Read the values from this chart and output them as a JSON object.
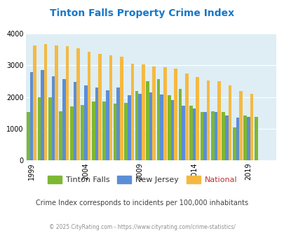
{
  "title": "Tinton Falls Property Crime Index",
  "title_color": "#1878c8",
  "subtitle": "Crime Index corresponds to incidents per 100,000 inhabitants",
  "footer": "© 2025 CityRating.com - https://www.cityrating.com/crime-statistics/",
  "years": [
    1999,
    2000,
    2001,
    2002,
    2003,
    2004,
    2005,
    2006,
    2007,
    2008,
    2009,
    2010,
    2011,
    2012,
    2013,
    2014,
    2015,
    2016,
    2017,
    2018,
    2019,
    2020,
    2021
  ],
  "tinton_falls": [
    1520,
    1990,
    2000,
    1560,
    1700,
    1750,
    1850,
    1850,
    1800,
    1810,
    2200,
    2500,
    2560,
    2050,
    2260,
    1720,
    1520,
    1550,
    1530,
    1050,
    1410,
    1380,
    0
  ],
  "new_jersey": [
    2790,
    2840,
    2650,
    2560,
    2470,
    2360,
    2290,
    2210,
    2310,
    2060,
    2100,
    2150,
    2090,
    1900,
    1720,
    1630,
    1530,
    1530,
    1420,
    1360,
    1380,
    0,
    0
  ],
  "national": [
    3620,
    3660,
    3630,
    3590,
    3530,
    3430,
    3360,
    3310,
    3260,
    3040,
    3020,
    2960,
    2930,
    2900,
    2750,
    2630,
    2510,
    2490,
    2360,
    2200,
    2100,
    0,
    0
  ],
  "colors": {
    "tinton_falls": "#7db832",
    "new_jersey": "#5b8ed6",
    "national": "#f5b942"
  },
  "bg_color": "#deeef4",
  "ylim": [
    0,
    4000
  ],
  "yticks": [
    0,
    1000,
    2000,
    3000,
    4000
  ],
  "xtick_years": [
    1999,
    2004,
    2009,
    2014,
    2019
  ],
  "legend_labels": [
    "Tinton Falls",
    "New Jersey",
    "National"
  ],
  "legend_colors": [
    "#7db832",
    "#5b8ed6",
    "#f5b942"
  ]
}
